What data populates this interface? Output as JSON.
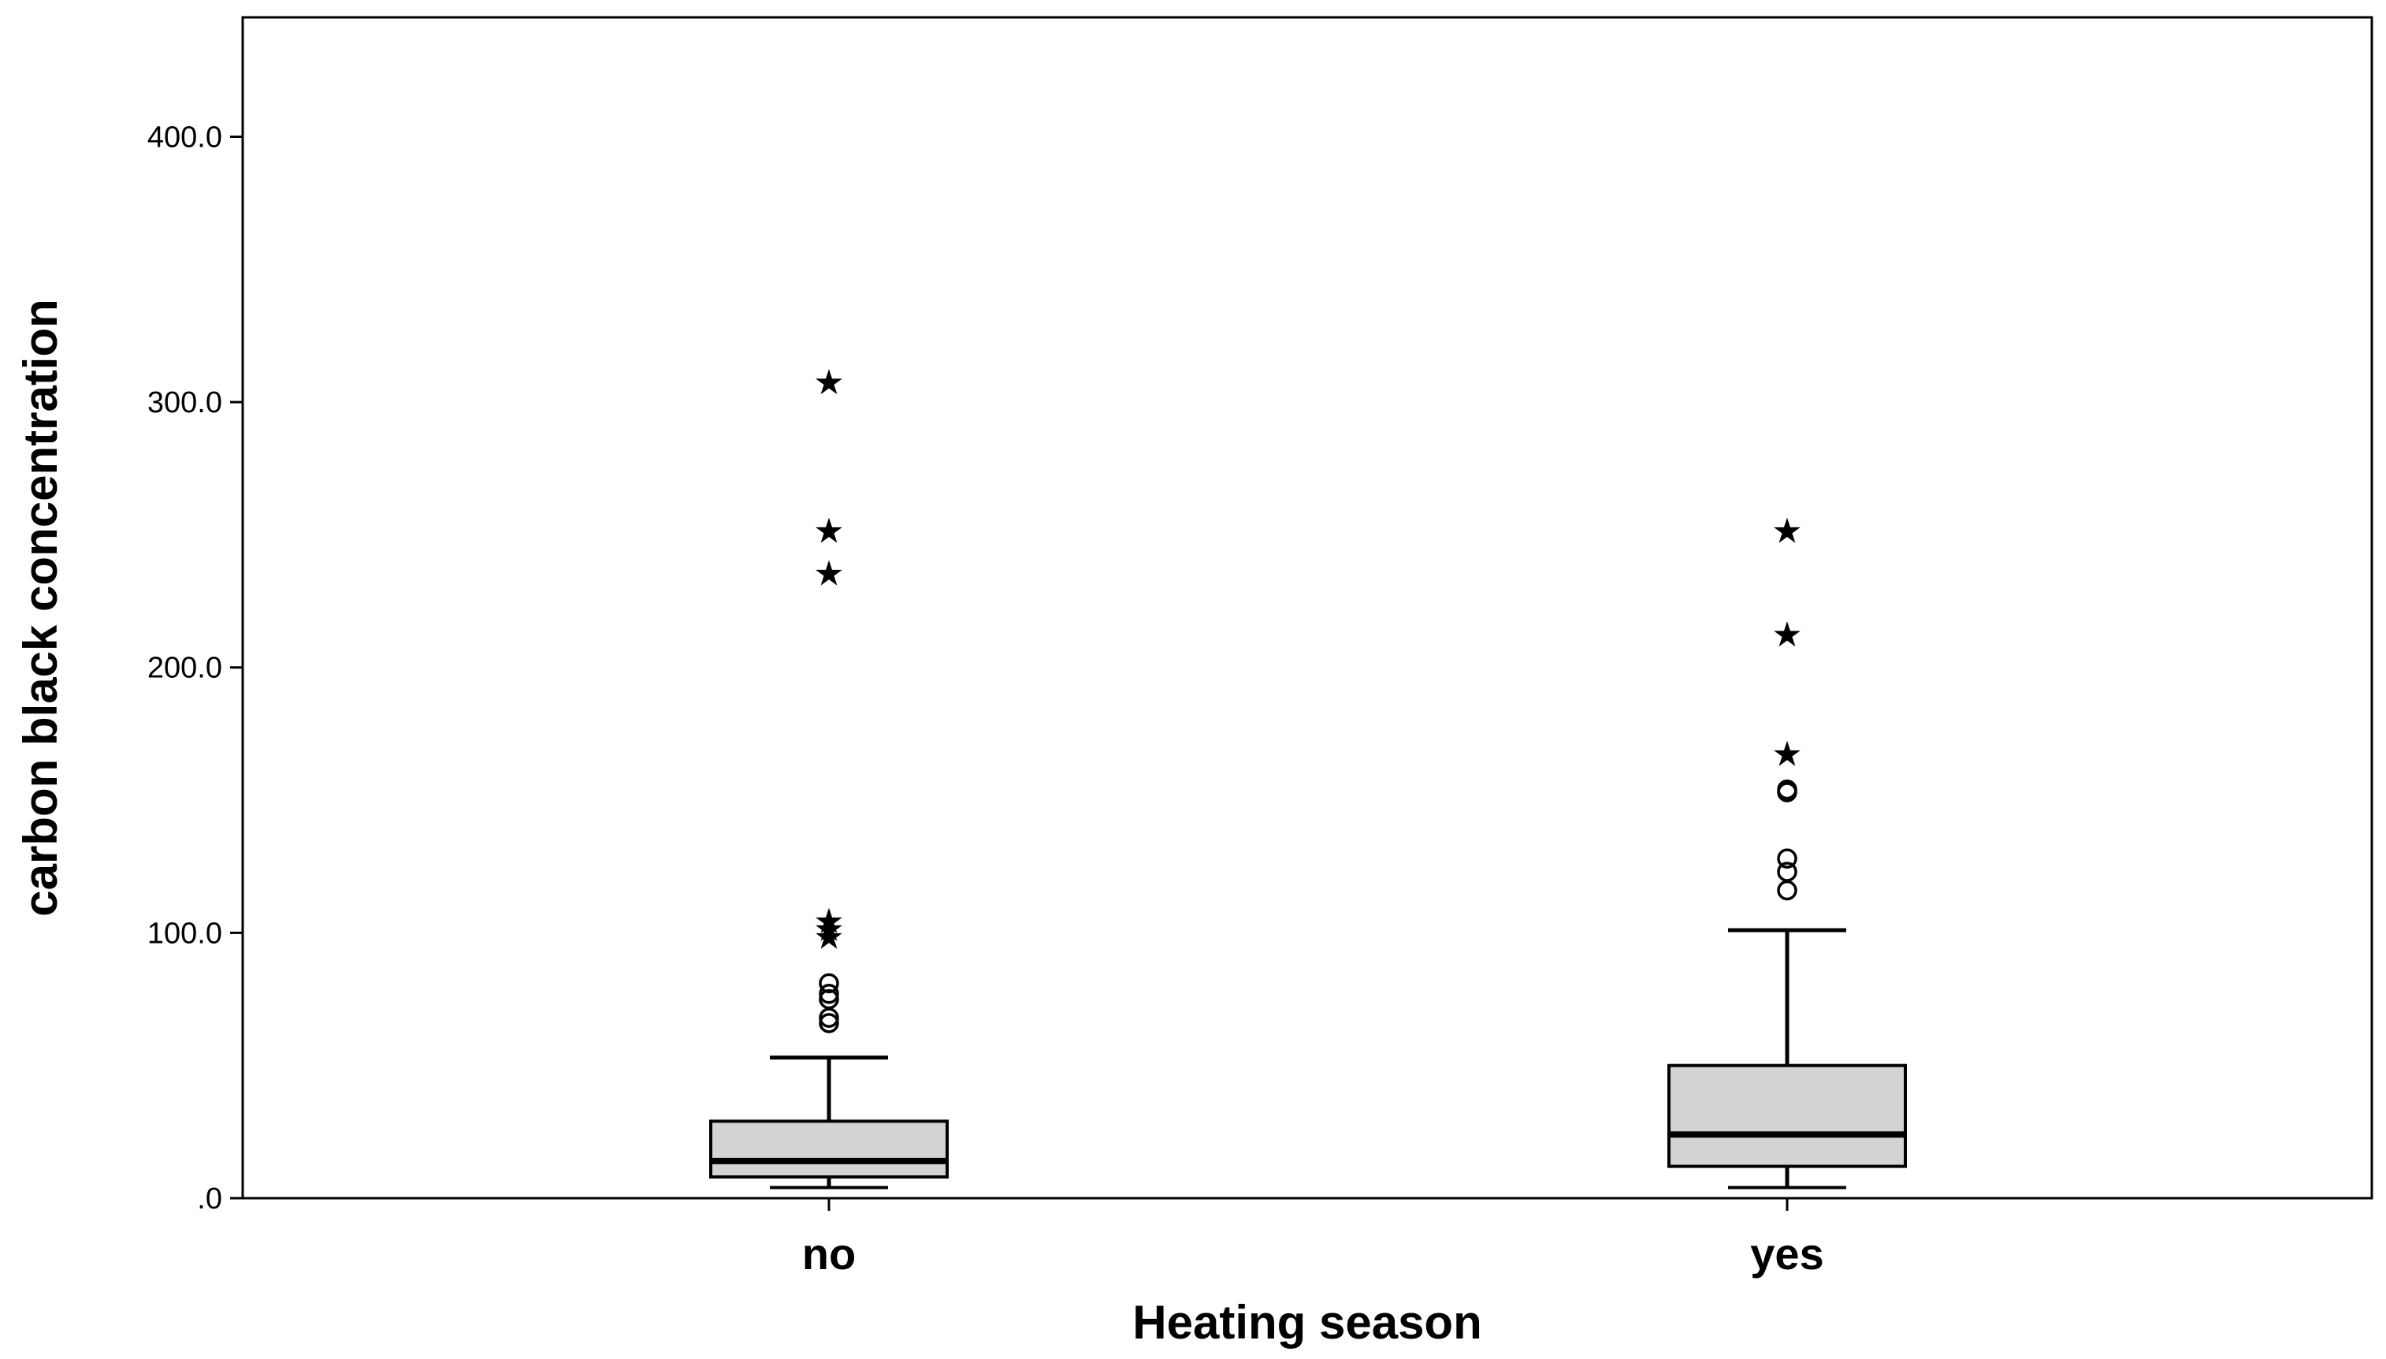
{
  "chart_data": {
    "type": "boxplot",
    "title": "",
    "xlabel": "Heating season",
    "ylabel": "carbon black concentration",
    "ylim": [
      0,
      445
    ],
    "yticks": [
      0,
      100,
      200,
      300,
      400
    ],
    "ytick_labels": [
      ".0",
      "100.0",
      "200.0",
      "300.0",
      "400.0"
    ],
    "grid": false,
    "box_fill": "#d3d3d3",
    "categories": [
      "no",
      "yes"
    ],
    "boxes": [
      {
        "category": "no",
        "whisker_low": 4,
        "q1": 8,
        "median": 14,
        "q3": 29,
        "whisker_high": 53,
        "outliers_circle": [
          66,
          68,
          75,
          77,
          81
        ],
        "outliers_star": [
          99,
          102,
          105,
          236,
          252,
          308
        ]
      },
      {
        "category": "yes",
        "whisker_low": 4,
        "q1": 12,
        "median": 24,
        "q3": 50,
        "whisker_high": 101,
        "outliers_circle": [
          116,
          123,
          128,
          153,
          154
        ],
        "outliers_star": [
          168,
          213,
          252
        ]
      }
    ]
  }
}
